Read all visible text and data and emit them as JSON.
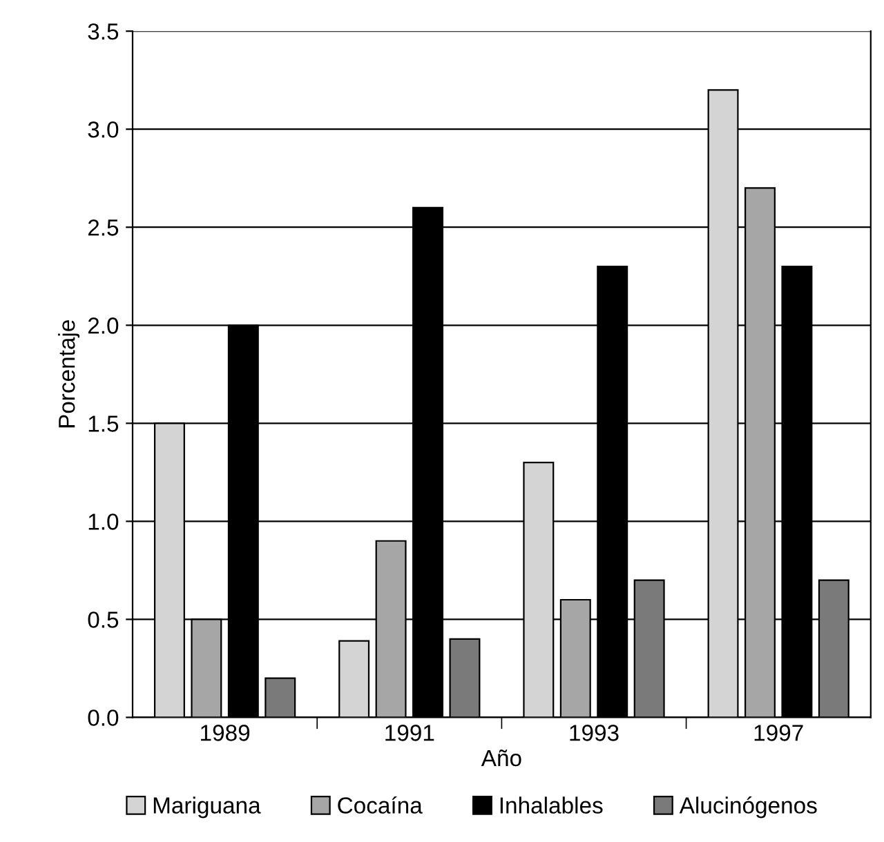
{
  "chart_data": {
    "type": "bar",
    "xlabel": "Año",
    "ylabel": "Porcentaje",
    "categories": [
      "1989",
      "1991",
      "1993",
      "1997"
    ],
    "series": [
      {
        "name": "Mariguana",
        "color": "#d4d4d4",
        "values": [
          1.5,
          0.39,
          1.3,
          3.2
        ]
      },
      {
        "name": "Cocaína",
        "color": "#a6a6a6",
        "values": [
          0.5,
          0.9,
          0.6,
          2.7
        ]
      },
      {
        "name": "Inhalables",
        "color": "#000000",
        "values": [
          2.0,
          2.6,
          2.3,
          2.3
        ]
      },
      {
        "name": "Alucinógenos",
        "color": "#7a7a7a",
        "values": [
          0.2,
          0.4,
          0.7,
          0.7
        ]
      }
    ],
    "ylim": [
      0,
      3.5
    ],
    "yticks": [
      {
        "value": 0,
        "label": "0.0"
      },
      {
        "value": 0.5,
        "label": "0.5"
      },
      {
        "value": 1,
        "label": "1.0"
      },
      {
        "value": 1.5,
        "label": "1.5"
      },
      {
        "value": 2,
        "label": "2.0"
      },
      {
        "value": 2.5,
        "label": "2.5"
      },
      {
        "value": 3,
        "label": "3.0"
      },
      {
        "value": 3.5,
        "label": "3.5"
      }
    ],
    "grid": "y",
    "legend": "bottom"
  }
}
